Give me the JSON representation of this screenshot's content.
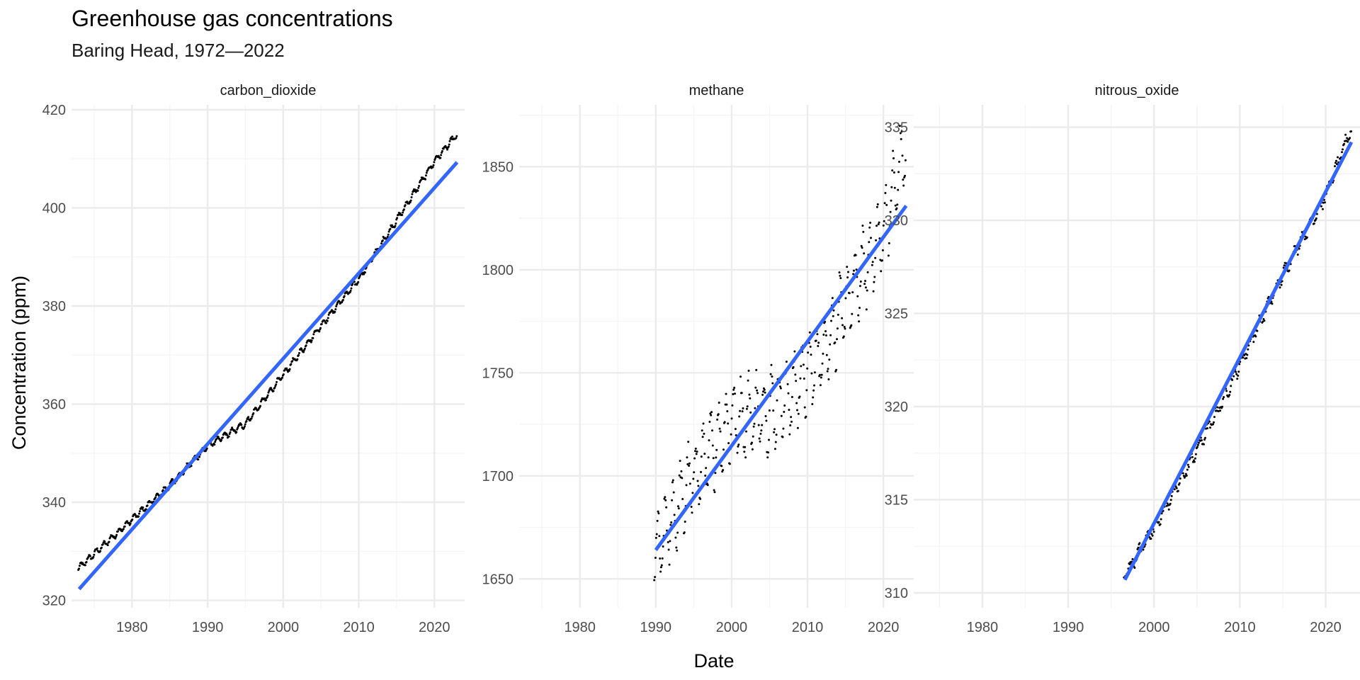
{
  "chart_data": {
    "type": "scatter",
    "title": "Greenhouse gas concentrations",
    "subtitle": "Baring Head, 1972—2022",
    "xlabel": "Date",
    "ylabel": "Concentration (ppm)",
    "xlim": [
      1972,
      2024
    ],
    "x_ticks": [
      "1980",
      "1990",
      "2000",
      "2010",
      "2020"
    ],
    "grid": true,
    "legend": "none",
    "colors": {
      "points": "#000000",
      "trend": "#3366ff",
      "grid_major": "#ebebeb",
      "grid_minor": "#f4f4f4",
      "text": "#4d4d4d"
    },
    "panels": [
      {
        "name": "carbon_dioxide",
        "ylim": [
          318.5,
          421
        ],
        "y_ticks": [
          320,
          340,
          360,
          380,
          400,
          420
        ],
        "trend": [
          [
            1973,
            322.3
          ],
          [
            2023,
            409.3
          ]
        ],
        "curve": [
          [
            1972.9,
            326.5
          ],
          [
            1975,
            329.5
          ],
          [
            1980,
            336.5
          ],
          [
            1985,
            343.5
          ],
          [
            1990,
            351.5
          ],
          [
            1995,
            356
          ],
          [
            2000,
            366
          ],
          [
            2005,
            376
          ],
          [
            2010,
            385.5
          ],
          [
            2015,
            397.5
          ],
          [
            2020,
            409.5
          ],
          [
            2023,
            415
          ]
        ],
        "seasonal": 0.6,
        "noise": 0.25,
        "step": 0.083
      },
      {
        "name": "methane",
        "ylim": [
          1636,
          1880
        ],
        "y_ticks": [
          1650,
          1700,
          1750,
          1800,
          1850
        ],
        "trend": [
          [
            1990,
            1664
          ],
          [
            2023,
            1831
          ]
        ],
        "curve": [
          [
            1989.8,
            1660
          ],
          [
            1992,
            1678
          ],
          [
            1995,
            1700
          ],
          [
            2000,
            1727
          ],
          [
            2005,
            1732
          ],
          [
            2008,
            1740
          ],
          [
            2012,
            1760
          ],
          [
            2016,
            1790
          ],
          [
            2020,
            1818
          ],
          [
            2023,
            1862
          ]
        ],
        "seasonal": 17,
        "noise": 6,
        "step": 0.083
      },
      {
        "name": "nitrous_oxide",
        "ylim": [
          309.2,
          336.2
        ],
        "y_ticks": [
          310,
          315,
          320,
          325,
          330,
          335
        ],
        "trend": [
          [
            1996.6,
            310.7
          ],
          [
            2023,
            334.2
          ]
        ],
        "curve": [
          [
            1996.5,
            310.9
          ],
          [
            2000,
            313.5
          ],
          [
            2004,
            316.8
          ],
          [
            2008,
            320.3
          ],
          [
            2012,
            324.2
          ],
          [
            2016,
            328
          ],
          [
            2020,
            331.3
          ],
          [
            2023,
            335
          ]
        ],
        "seasonal": 0.28,
        "noise": 0.2,
        "step": 0.083
      }
    ]
  }
}
